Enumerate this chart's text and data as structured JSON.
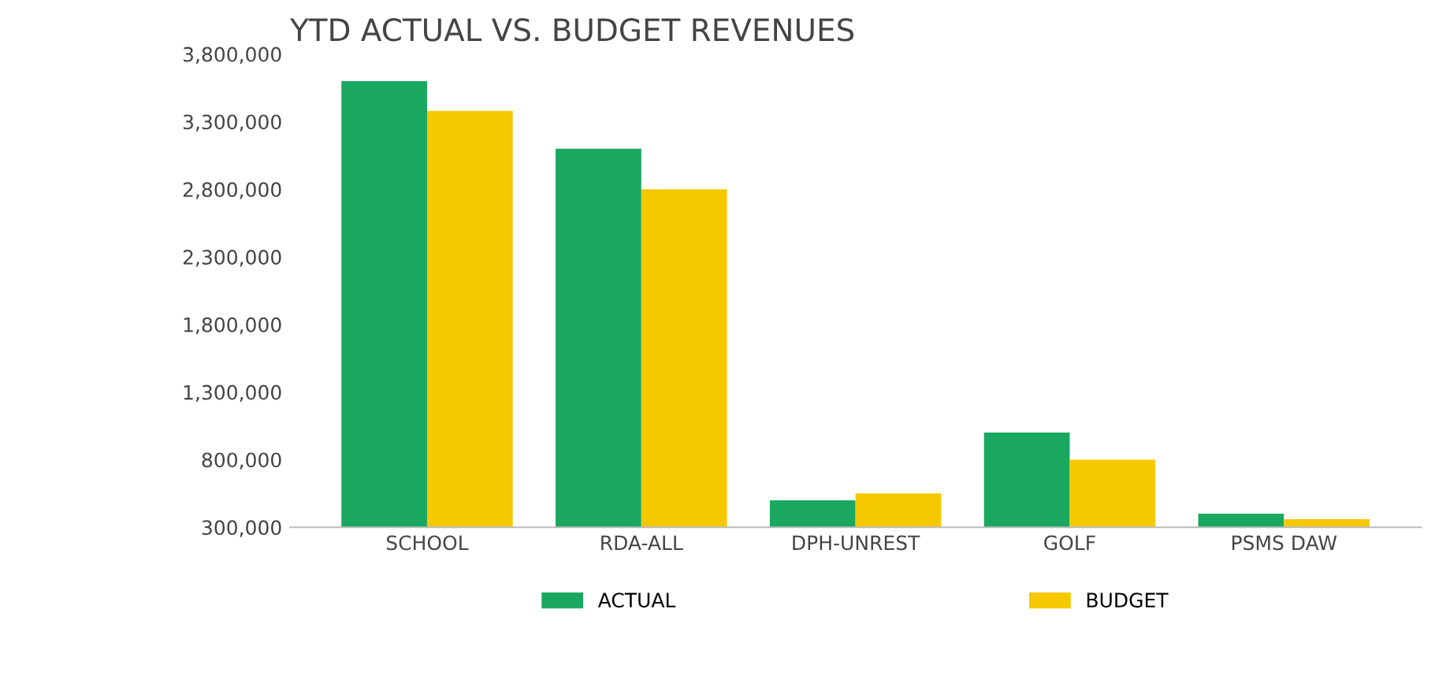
{
  "chart_data": {
    "type": "bar",
    "title": "YTD ACTUAL VS. BUDGET REVENUES",
    "categories": [
      "SCHOOL",
      "RDA-ALL",
      "DPH-UNREST",
      "GOLF",
      "PSMS DAW"
    ],
    "series": [
      {
        "name": "ACTUAL",
        "color": "#1aa860",
        "values": [
          3600000,
          3100000,
          500000,
          1000000,
          400000
        ]
      },
      {
        "name": "BUDGET",
        "color": "#f5c800",
        "values": [
          3380000,
          2800000,
          550000,
          800000,
          360000
        ]
      }
    ],
    "ylim": [
      300000,
      3800000
    ],
    "yticks": [
      {
        "value": 300000,
        "label": "300,000"
      },
      {
        "value": 800000,
        "label": "800,000"
      },
      {
        "value": 1300000,
        "label": "1,300,000"
      },
      {
        "value": 1800000,
        "label": "1,800,000"
      },
      {
        "value": 2300000,
        "label": "2,300,000"
      },
      {
        "value": 2800000,
        "label": "2,800,000"
      },
      {
        "value": 3300000,
        "label": "3,300,000"
      },
      {
        "value": 3800000,
        "label": "3,800,000"
      }
    ],
    "grid": false,
    "legend": "bottom"
  }
}
